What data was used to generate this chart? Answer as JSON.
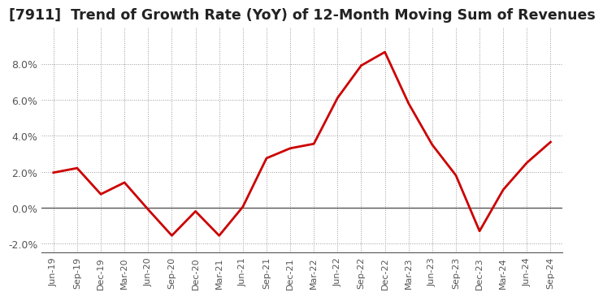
{
  "title": "[7911]  Trend of Growth Rate (YoY) of 12-Month Moving Sum of Revenues",
  "labels": [
    "Jun-19",
    "Sep-19",
    "Dec-19",
    "Mar-20",
    "Jun-20",
    "Sep-20",
    "Dec-20",
    "Mar-21",
    "Jun-21",
    "Sep-21",
    "Dec-21",
    "Mar-22",
    "Jun-22",
    "Sep-22",
    "Dec-22",
    "Mar-23",
    "Jun-23",
    "Sep-23",
    "Dec-23",
    "Mar-24",
    "Jun-24",
    "Sep-24"
  ],
  "values": [
    1.95,
    2.2,
    0.75,
    1.4,
    -0.1,
    -1.55,
    -0.2,
    -1.55,
    0.05,
    2.75,
    3.3,
    3.55,
    6.1,
    7.9,
    8.65,
    5.8,
    3.5,
    1.8,
    -1.3,
    1.0,
    2.5,
    3.65
  ],
  "line_color": "#cc0000",
  "line_width": 2.0,
  "ylim": [
    -2.5,
    10.0
  ],
  "yticks": [
    -2.0,
    0.0,
    2.0,
    4.0,
    6.0,
    8.0
  ],
  "background_color": "#ffffff",
  "grid_color": "#999999",
  "title_fontsize": 12.5,
  "zero_line_color": "#555555",
  "tick_label_color": "#555555",
  "spine_color": "#555555"
}
